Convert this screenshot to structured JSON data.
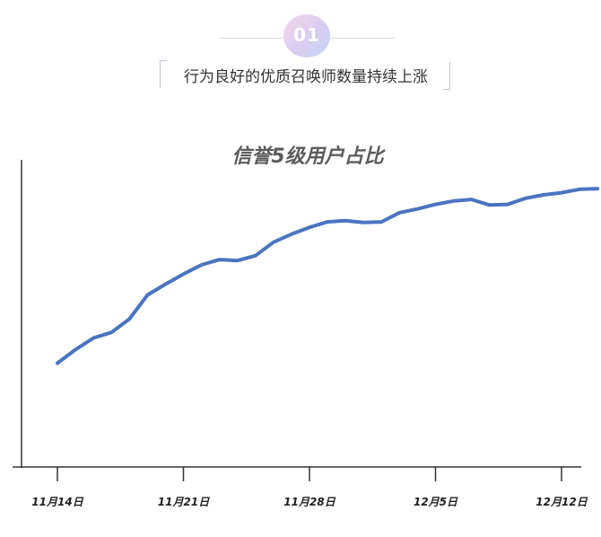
{
  "header": {
    "section_number": "01",
    "subtitle": "行为良好的优质召唤师数量持续上涨"
  },
  "colors": {
    "line": "#4a74bf",
    "axis": "#333333",
    "title": "#5c5c5c"
  },
  "chart_data": {
    "type": "line",
    "title": "信誉5级用户占比",
    "xlabel": "",
    "ylabel": "",
    "x_tick_labels": [
      "11月14日",
      "11月21日",
      "11月28日",
      "12月5日",
      "12月12日"
    ],
    "x_tick_days": [
      0,
      7,
      14,
      21,
      28
    ],
    "x_range": [
      -1.8,
      29
    ],
    "y_range": [
      0,
      100
    ],
    "y_axis_labels_shown": false,
    "grid": false,
    "legend": "none",
    "series": [
      {
        "color": "#4a74bf",
        "points": [
          [
            0,
            33.8
          ],
          [
            1,
            38.2
          ],
          [
            2,
            42.0
          ],
          [
            3,
            43.8
          ],
          [
            4,
            48.2
          ],
          [
            5,
            56.0
          ],
          [
            6,
            59.5
          ],
          [
            7,
            62.8
          ],
          [
            8,
            65.8
          ],
          [
            9,
            67.5
          ],
          [
            10,
            67.2
          ],
          [
            11,
            68.8
          ],
          [
            12,
            73.2
          ],
          [
            13,
            75.8
          ],
          [
            14,
            78.0
          ],
          [
            15,
            79.8
          ],
          [
            16,
            80.2
          ],
          [
            17,
            79.6
          ],
          [
            18,
            79.8
          ],
          [
            19,
            82.8
          ],
          [
            20,
            84.0
          ],
          [
            21,
            85.5
          ],
          [
            22,
            86.6
          ],
          [
            23,
            87.1
          ],
          [
            24,
            85.3
          ],
          [
            25,
            85.5
          ],
          [
            26,
            87.5
          ],
          [
            27,
            88.6
          ],
          [
            28,
            89.3
          ],
          [
            29,
            90.4
          ],
          [
            30,
            90.6
          ]
        ]
      }
    ]
  }
}
